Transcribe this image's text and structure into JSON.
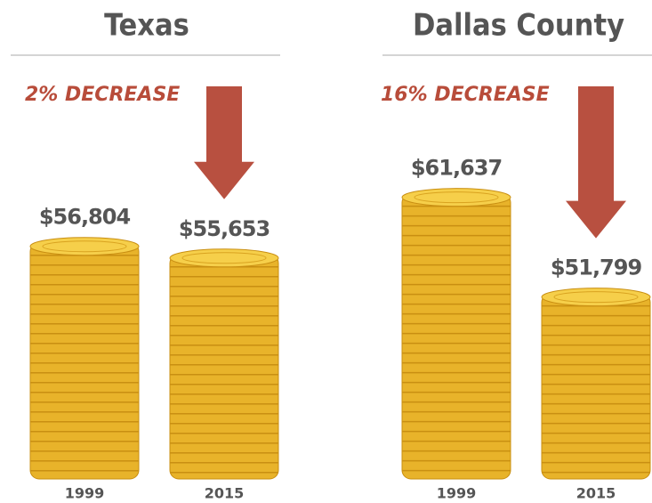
{
  "chart_data": [
    {
      "type": "bar",
      "title": "Texas",
      "annotation": "2% DECREASE",
      "categories": [
        "1999",
        "2015"
      ],
      "values": [
        56804,
        55653
      ],
      "value_labels": [
        "$56,804",
        "$55,653"
      ],
      "color": "#e8b32a",
      "ylim": [
        33500,
        66000
      ]
    },
    {
      "type": "bar",
      "title": "Dallas County",
      "annotation": "16% DECREASE",
      "categories": [
        "1999",
        "2015"
      ],
      "values": [
        61637,
        51799
      ],
      "value_labels": [
        "$61,637",
        "$51,799"
      ],
      "color": "#e8b32a",
      "ylim": [
        33500,
        66000
      ]
    }
  ]
}
